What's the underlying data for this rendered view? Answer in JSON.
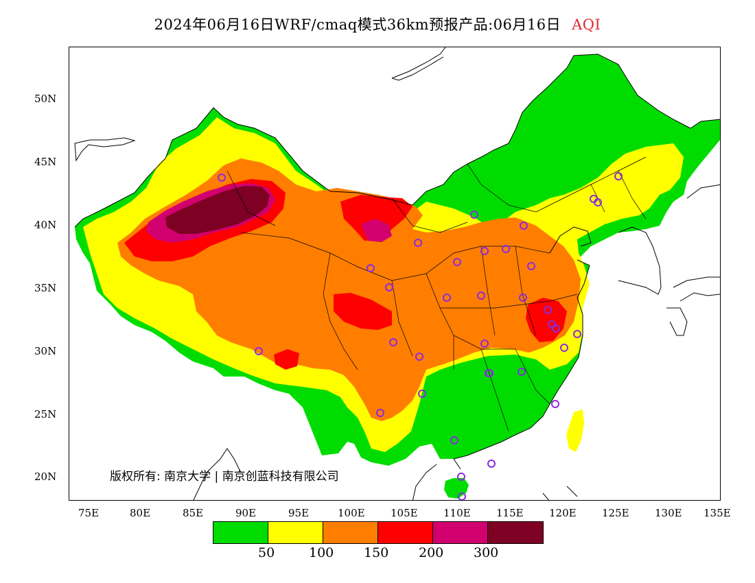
{
  "title": {
    "main": "2024年06月16日WRF/cmaq模式36km预报产品:06月16日",
    "variable": "AQI"
  },
  "axes": {
    "y_ticks": [
      "50N",
      "45N",
      "40N",
      "35N",
      "30N",
      "25N",
      "20N"
    ],
    "x_ticks": [
      "75E",
      "80E",
      "85E",
      "90E",
      "95E",
      "100E",
      "105E",
      "110E",
      "115E",
      "120E",
      "125E",
      "130E",
      "135E"
    ],
    "lon_range": [
      73,
      135
    ],
    "lat_range": [
      18,
      54
    ]
  },
  "copyright": "版权所有: 南京大学 | 南京创蓝科技有限公司",
  "legend": {
    "colors": [
      "#00dc00",
      "#ffff00",
      "#ff7e00",
      "#ff0000",
      "#d2006e",
      "#7e0023"
    ],
    "labels": [
      "50",
      "100",
      "150",
      "200",
      "300"
    ]
  },
  "colors": {
    "good": "#00dc00",
    "moderate": "#ffff00",
    "sensitive": "#ff7e00",
    "unhealthy": "#ff0000",
    "very_unhealthy": "#d2006e",
    "hazardous": "#7e0023",
    "station_marker": "#8a2be2"
  },
  "icons": {
    "station": "circle-marker-icon"
  }
}
